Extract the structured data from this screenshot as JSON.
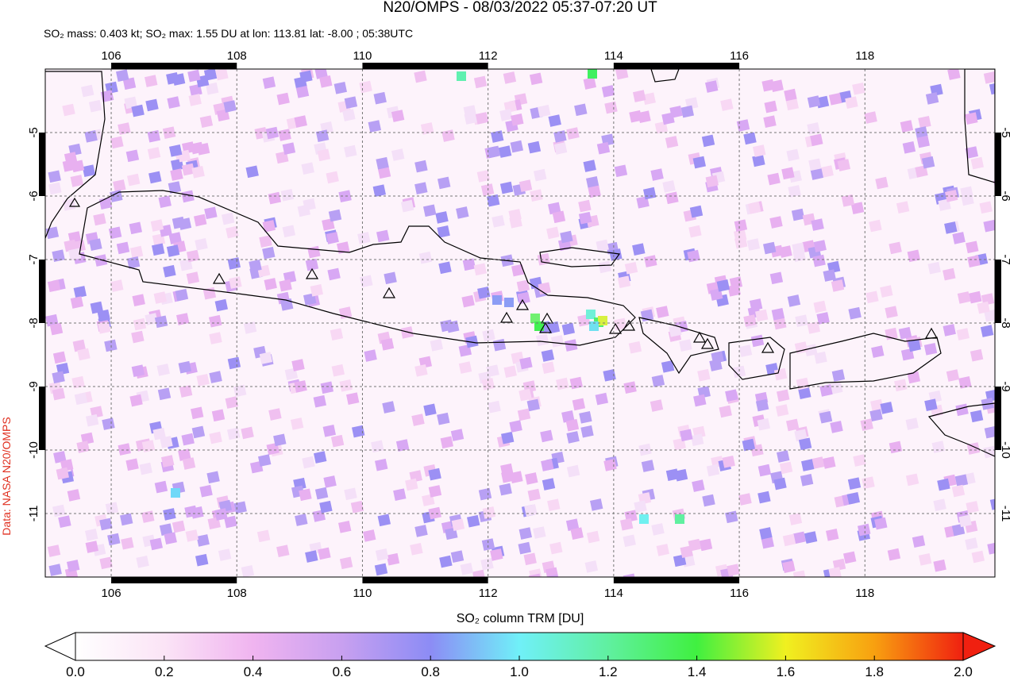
{
  "chart_data": {
    "type": "map",
    "title": "N20/OMPS - 08/03/2022 05:37-07:20 UT",
    "subtitle": "SO₂ mass: 0.403 kt; SO₂ max: 1.55 DU at lon: 113.81 lat: -8.00 ; 05:38UTC",
    "credit": "Data: NASA N20/OMPS",
    "xlim": [
      104.95,
      120.07
    ],
    "ylim": [
      -12.0,
      -4.0
    ],
    "xticks": [
      106,
      108,
      110,
      112,
      114,
      116,
      118
    ],
    "yticks": [
      -5,
      -6,
      -7,
      -8,
      -9,
      -10,
      -11
    ],
    "grid": true,
    "colorbar": {
      "label": "SO₂ column TRM [DU]",
      "clim": [
        0,
        2
      ],
      "ticks": [
        {
          "value": 0,
          "label": "0.0"
        },
        {
          "value": 0.2,
          "label": "0.2"
        },
        {
          "value": 0.4,
          "label": "0.4"
        },
        {
          "value": 0.6,
          "label": "0.6"
        },
        {
          "value": 0.8,
          "label": "0.8"
        },
        {
          "value": 1,
          "label": "1.0"
        },
        {
          "value": 1.2,
          "label": "1.2"
        },
        {
          "value": 1.4,
          "label": "1.4"
        },
        {
          "value": 1.6,
          "label": "1.6"
        },
        {
          "value": 1.8,
          "label": "1.8"
        },
        {
          "value": 2,
          "label": "2.0"
        }
      ]
    }
  }
}
